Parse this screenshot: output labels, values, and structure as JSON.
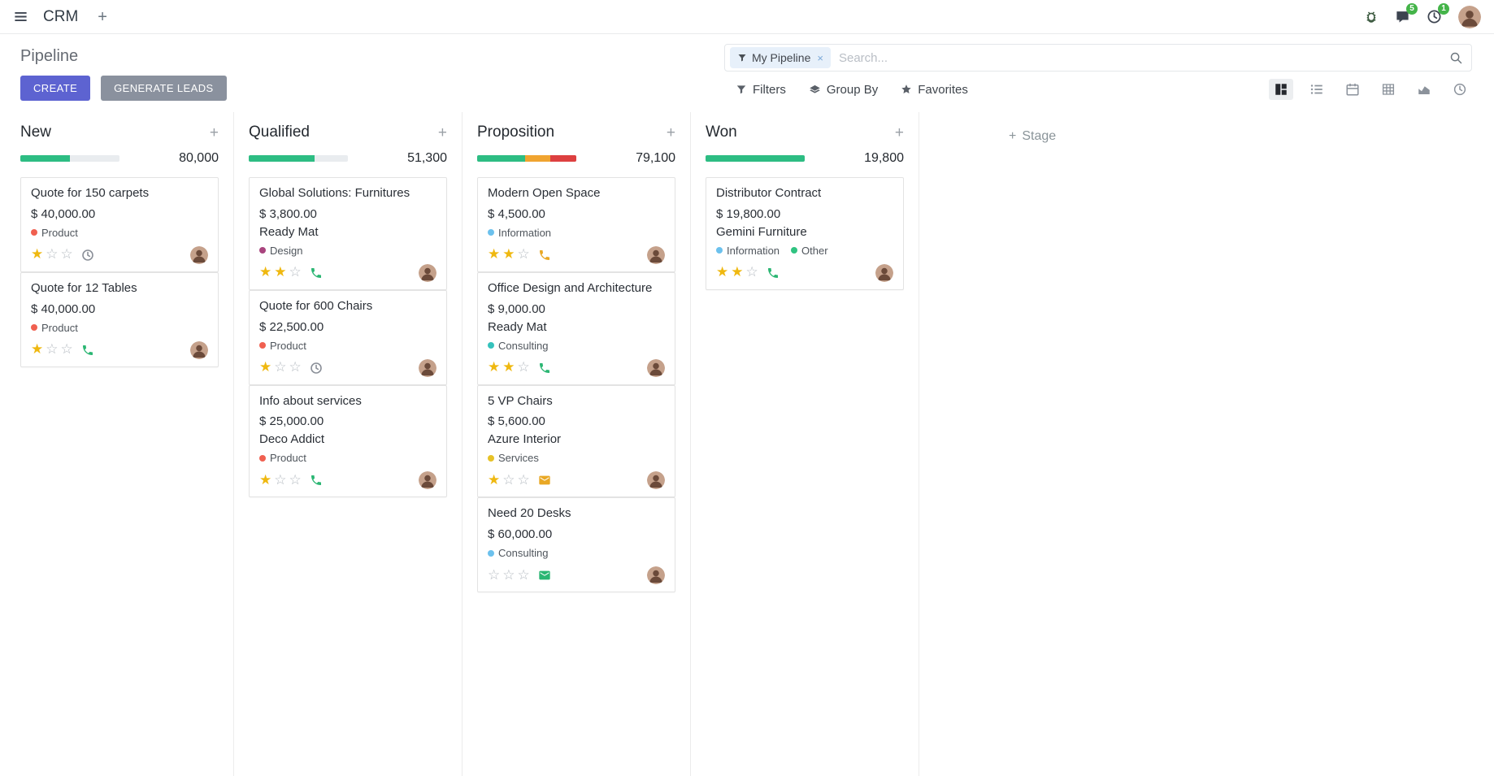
{
  "colors": {
    "primary_button": "#5D63D1",
    "secondary_button": "#8A919E",
    "badge_green": "#44B449",
    "star_gold": "#EFB810",
    "star_empty": "#B4BAC0",
    "progress_remainder": "#E9ECEF",
    "facet_bg": "#E7F0FA",
    "accent_blue": "#7AA8D8"
  },
  "navbar": {
    "app_name": "CRM",
    "messages_badge": "5",
    "activities_badge": "1"
  },
  "control_panel": {
    "title": "Pipeline",
    "buttons": {
      "create": "CREATE",
      "generate_leads": "GENERATE LEADS"
    },
    "search": {
      "facet": "My Pipeline",
      "remove_facet": "×",
      "placeholder": "Search..."
    },
    "filters": "Filters",
    "group_by": "Group By",
    "favorites": "Favorites"
  },
  "kanban": {
    "add_stage": "Stage",
    "columns": [
      {
        "name": "New",
        "total": "80,000",
        "progress": [
          {
            "color": "#2DBD83",
            "pct": 50
          }
        ],
        "cards": [
          {
            "title": "Quote for 150 carpets",
            "amount": "$ 40,000.00",
            "tags": [
              {
                "label": "Product",
                "color": "#F06050"
              }
            ],
            "stars": 1,
            "activity": {
              "type": "clock",
              "color": "#8A8F98"
            }
          },
          {
            "title": "Quote for 12 Tables",
            "amount": "$ 40,000.00",
            "tags": [
              {
                "label": "Product",
                "color": "#F06050"
              }
            ],
            "stars": 1,
            "activity": {
              "type": "phone",
              "color": "#2BB673"
            }
          }
        ]
      },
      {
        "name": "Qualified",
        "total": "51,300",
        "progress": [
          {
            "color": "#2DBD83",
            "pct": 66
          }
        ],
        "cards": [
          {
            "title": "Global Solutions: Furnitures",
            "amount": "$ 3,800.00",
            "partner": "Ready Mat",
            "tags": [
              {
                "label": "Design",
                "color": "#A9447E"
              }
            ],
            "stars": 2,
            "activity": {
              "type": "phone",
              "color": "#2BB673"
            }
          },
          {
            "title": "Quote for 600 Chairs",
            "amount": "$ 22,500.00",
            "tags": [
              {
                "label": "Product",
                "color": "#F06050"
              }
            ],
            "stars": 1,
            "activity": {
              "type": "clock",
              "color": "#8A8F98"
            }
          },
          {
            "title": "Info about services",
            "amount": "$ 25,000.00",
            "partner": "Deco Addict",
            "tags": [
              {
                "label": "Product",
                "color": "#F06050"
              }
            ],
            "stars": 1,
            "activity": {
              "type": "phone",
              "color": "#2BB673"
            }
          }
        ]
      },
      {
        "name": "Proposition",
        "total": "79,100",
        "progress": [
          {
            "color": "#2DBD83",
            "pct": 48
          },
          {
            "color": "#F0A430",
            "pct": 26
          },
          {
            "color": "#DD4040",
            "pct": 26
          }
        ],
        "cards": [
          {
            "title": "Modern Open Space",
            "amount": "$ 4,500.00",
            "tags": [
              {
                "label": "Information",
                "color": "#6CC1ED"
              }
            ],
            "stars": 2,
            "activity": {
              "type": "phone",
              "color": "#E9A825"
            }
          },
          {
            "title": "Office Design and Architecture",
            "amount": "$ 9,000.00",
            "partner": "Ready Mat",
            "tags": [
              {
                "label": "Consulting",
                "color": "#35C2BC"
              }
            ],
            "stars": 2,
            "activity": {
              "type": "phone",
              "color": "#2BB673"
            }
          },
          {
            "title": "5 VP Chairs",
            "amount": "$ 5,600.00",
            "partner": "Azure Interior",
            "tags": [
              {
                "label": "Services",
                "color": "#E7C227"
              }
            ],
            "stars": 1,
            "activity": {
              "type": "envelope",
              "color": "#E9A825"
            }
          },
          {
            "title": "Need 20 Desks",
            "amount": "$ 60,000.00",
            "tags": [
              {
                "label": "Consulting",
                "color": "#6CC1ED"
              }
            ],
            "stars": 0,
            "activity": {
              "type": "envelope",
              "color": "#2BB673"
            }
          }
        ]
      },
      {
        "name": "Won",
        "total": "19,800",
        "progress": [
          {
            "color": "#2DBD83",
            "pct": 100
          }
        ],
        "cards": [
          {
            "title": "Distributor Contract",
            "amount": "$ 19,800.00",
            "partner": "Gemini Furniture",
            "tags": [
              {
                "label": "Information",
                "color": "#6CC1ED"
              },
              {
                "label": "Other",
                "color": "#30C381"
              }
            ],
            "stars": 2,
            "activity": {
              "type": "phone",
              "color": "#2BB673"
            }
          }
        ]
      }
    ]
  }
}
